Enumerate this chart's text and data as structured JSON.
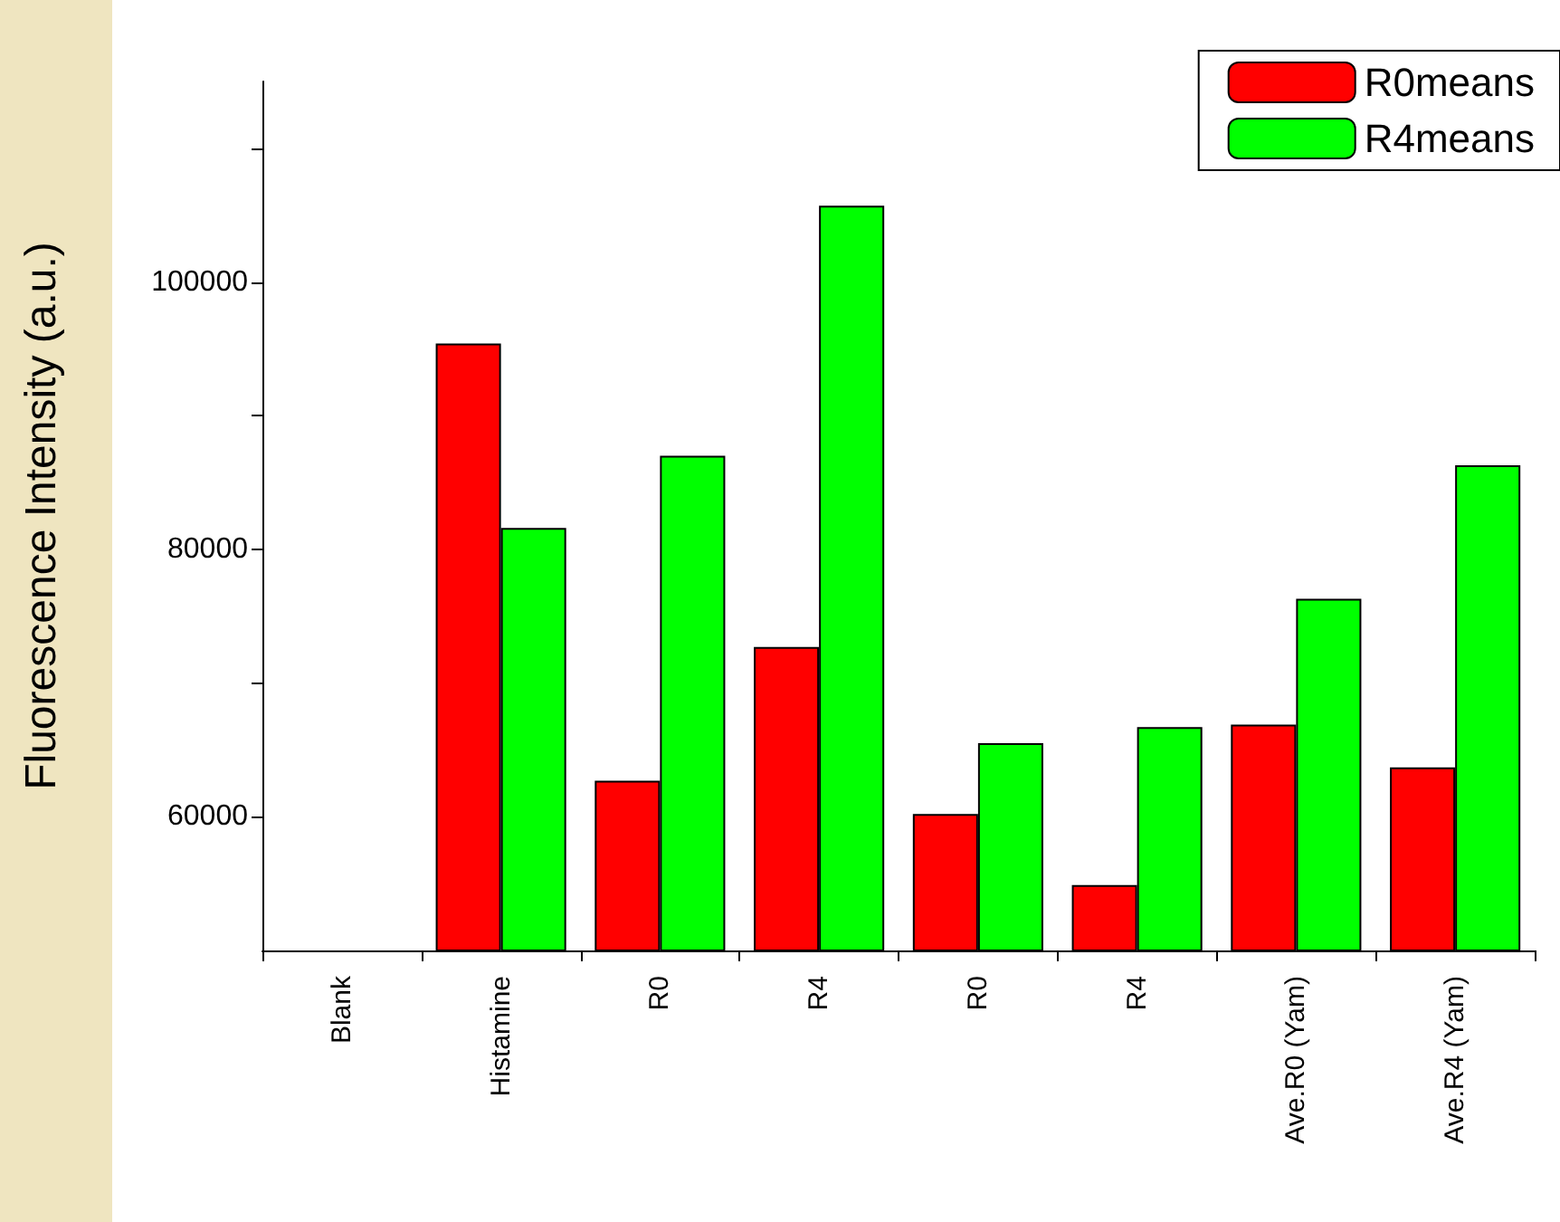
{
  "chart_data": {
    "type": "bar",
    "ylabel": "Fluorescence Intensity (a.u.)",
    "categories": [
      "Blank",
      "Histamine",
      "R0",
      "R4",
      "R0",
      "R4",
      "Ave.R0 (Yam)",
      "Ave.R4 (Yam)"
    ],
    "series": [
      {
        "name": "R0means",
        "color": "#ff0000",
        "values": [
          null,
          95400,
          62700,
          72700,
          60200,
          54900,
          66900,
          63700
        ]
      },
      {
        "name": "R4means",
        "color": "#00ff00",
        "values": [
          null,
          81600,
          87000,
          105700,
          65500,
          66700,
          76300,
          86300
        ]
      }
    ],
    "ylim": [
      50000,
      115000
    ],
    "yticks": [
      60000,
      {
        "value": 70000,
        "label": null
      },
      80000,
      {
        "value": 90000,
        "label": null
      },
      100000,
      {
        "value": 110000,
        "label": null
      }
    ],
    "grid": false,
    "legend": "top right"
  }
}
